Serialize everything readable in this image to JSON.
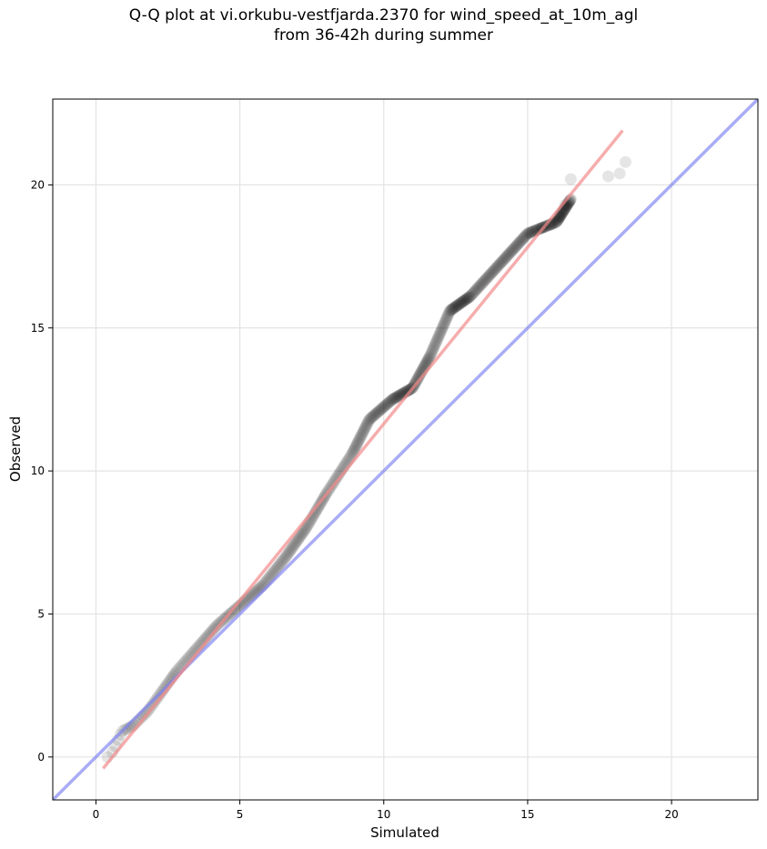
{
  "chart_data": {
    "type": "scatter",
    "title_lines": [
      "Q-Q plot at vi.orkubu-vestfjarda.2370 for wind_speed_at_10m_agl",
      "from 36-42h during summer"
    ],
    "xlabel": "Simulated",
    "ylabel": "Observed",
    "xlim": [
      -1.5,
      23
    ],
    "ylim": [
      -1.5,
      23
    ],
    "xticks": [
      0,
      5,
      10,
      15,
      20
    ],
    "yticks": [
      0,
      5,
      10,
      15,
      20
    ],
    "grid": true,
    "reference_line": {
      "description": "1:1 line",
      "color": "#7b7ff0",
      "points": [
        [
          -1.5,
          -1.5
        ],
        [
          23,
          23
        ]
      ]
    },
    "fit_line": {
      "color": "#f28a8a",
      "points": [
        [
          0.25,
          -0.4
        ],
        [
          18.3,
          21.9
        ]
      ]
    },
    "point_color": "#000000",
    "quantile_knots": [
      [
        0.4,
        0.0
      ],
      [
        0.6,
        0.2
      ],
      [
        0.9,
        0.9
      ],
      [
        1.3,
        1.1
      ],
      [
        1.8,
        1.6
      ],
      [
        2.3,
        2.3
      ],
      [
        2.8,
        3.0
      ],
      [
        3.5,
        3.8
      ],
      [
        4.2,
        4.6
      ],
      [
        5.0,
        5.3
      ],
      [
        5.8,
        6.0
      ],
      [
        6.6,
        7.0
      ],
      [
        7.3,
        8.0
      ],
      [
        8.0,
        9.2
      ],
      [
        8.9,
        10.6
      ],
      [
        9.5,
        11.8
      ],
      [
        10.3,
        12.5
      ],
      [
        11.0,
        12.9
      ],
      [
        11.6,
        14.0
      ],
      [
        12.3,
        15.6
      ],
      [
        13.0,
        16.1
      ],
      [
        14.0,
        17.2
      ],
      [
        15.0,
        18.3
      ],
      [
        16.0,
        18.7
      ],
      [
        16.5,
        19.5
      ]
    ],
    "dense_points": 430,
    "tail_points": [
      [
        16.5,
        20.2
      ],
      [
        17.8,
        20.3
      ],
      [
        18.2,
        20.4
      ],
      [
        18.4,
        20.8
      ],
      [
        16.3,
        19.3
      ],
      [
        16.1,
        18.9
      ],
      [
        15.8,
        18.6
      ],
      [
        15.5,
        18.5
      ]
    ]
  }
}
